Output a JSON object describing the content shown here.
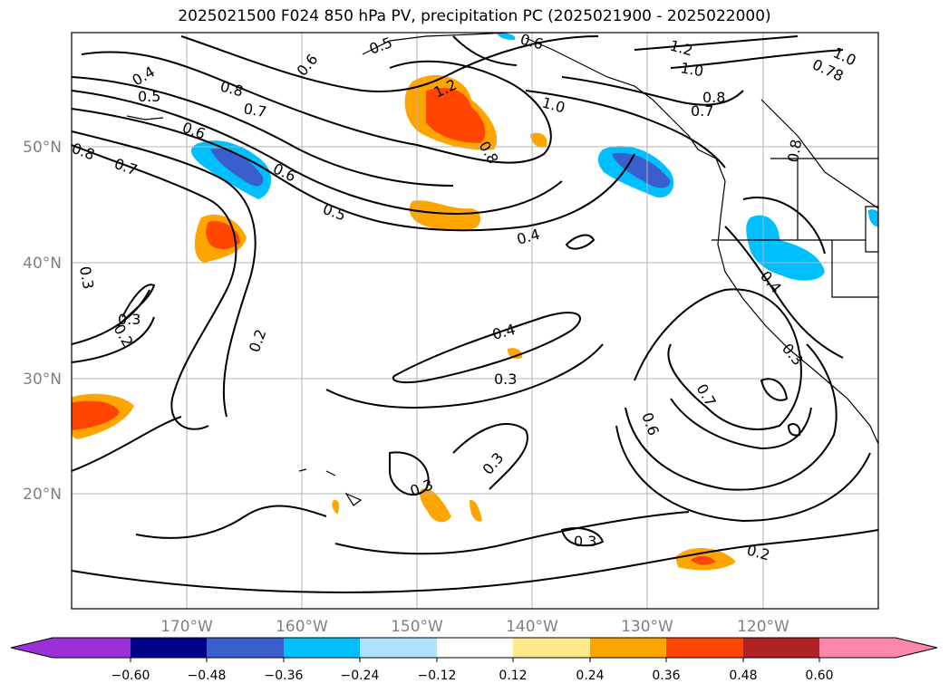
{
  "title": "2025021500 F024 850 hPa PV, precipitation PC (2025021900 - 2025022000)",
  "map": {
    "lat_labels": [
      "50°N",
      "40°N",
      "30°N",
      "20°N"
    ],
    "lon_labels": [
      "170°W",
      "160°W",
      "150°W",
      "140°W",
      "130°W",
      "120°W"
    ],
    "gridlines": true,
    "contour_labels": [
      "0.4",
      "0.5",
      "0.8",
      "0.6",
      "0.5",
      "0.8",
      "0.7",
      "0.6",
      "0.7",
      "0.6",
      "0.5",
      "1.2",
      "1.0",
      "0.8",
      "0.6",
      "1.2",
      "1.0",
      "0.8",
      "0.7",
      "0.78",
      "1.0",
      "0.3",
      "0.2",
      "0.4",
      "0.3",
      "0.2",
      "0.4",
      "0.3",
      "0.3",
      "0.3",
      "0.2",
      "0.7",
      "0.6",
      "0.3",
      "0.4",
      "0.3",
      "0.8"
    ]
  },
  "colorbar": {
    "ticks": [
      "−0.60",
      "−0.48",
      "−0.36",
      "−0.24",
      "−0.12",
      "0.12",
      "0.24",
      "0.36",
      "0.48",
      "0.60"
    ],
    "colors": [
      "#9b30d8",
      "#00008b",
      "#3a5fcd",
      "#00bfff",
      "#b0e2ff",
      "#ffffff",
      "#ffe98a",
      "#ffa500",
      "#ff4500",
      "#b22222",
      "#ff88aa"
    ]
  }
}
